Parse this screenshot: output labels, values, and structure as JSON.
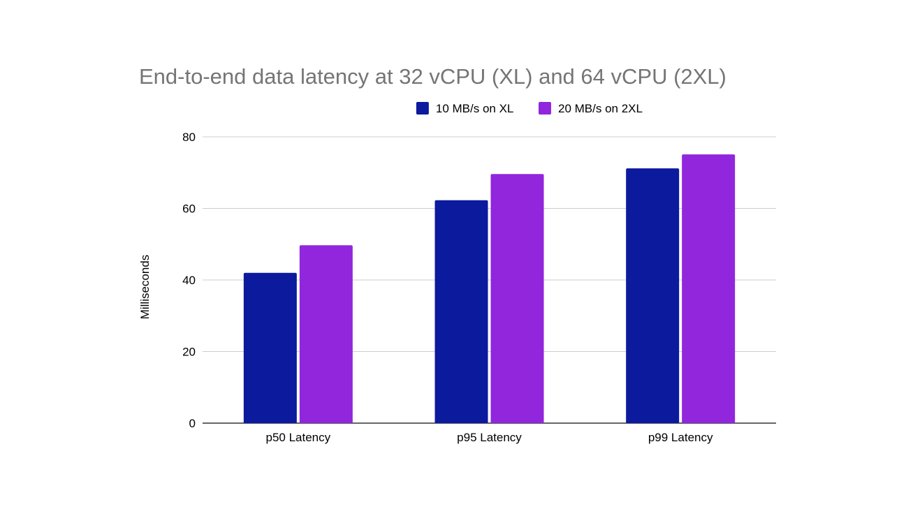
{
  "chart_data": {
    "type": "bar",
    "title": "End-to-end data latency at 32 vCPU (XL) and 64 vCPU (2XL)",
    "xlabel": "",
    "ylabel": "Milliseconds",
    "ylim": [
      0,
      80
    ],
    "yticks": [
      0,
      20,
      40,
      60,
      80
    ],
    "grid": true,
    "legend_position": "top",
    "categories": [
      "p50 Latency",
      "p95 Latency",
      "p99 Latency"
    ],
    "series": [
      {
        "name": "10 MB/s on XL",
        "color": "#0c1a9e",
        "values": [
          42,
          62.3,
          71.2
        ]
      },
      {
        "name": "20 MB/s on 2XL",
        "color": "#9126dd",
        "values": [
          49.7,
          69.6,
          75.1
        ]
      }
    ]
  }
}
